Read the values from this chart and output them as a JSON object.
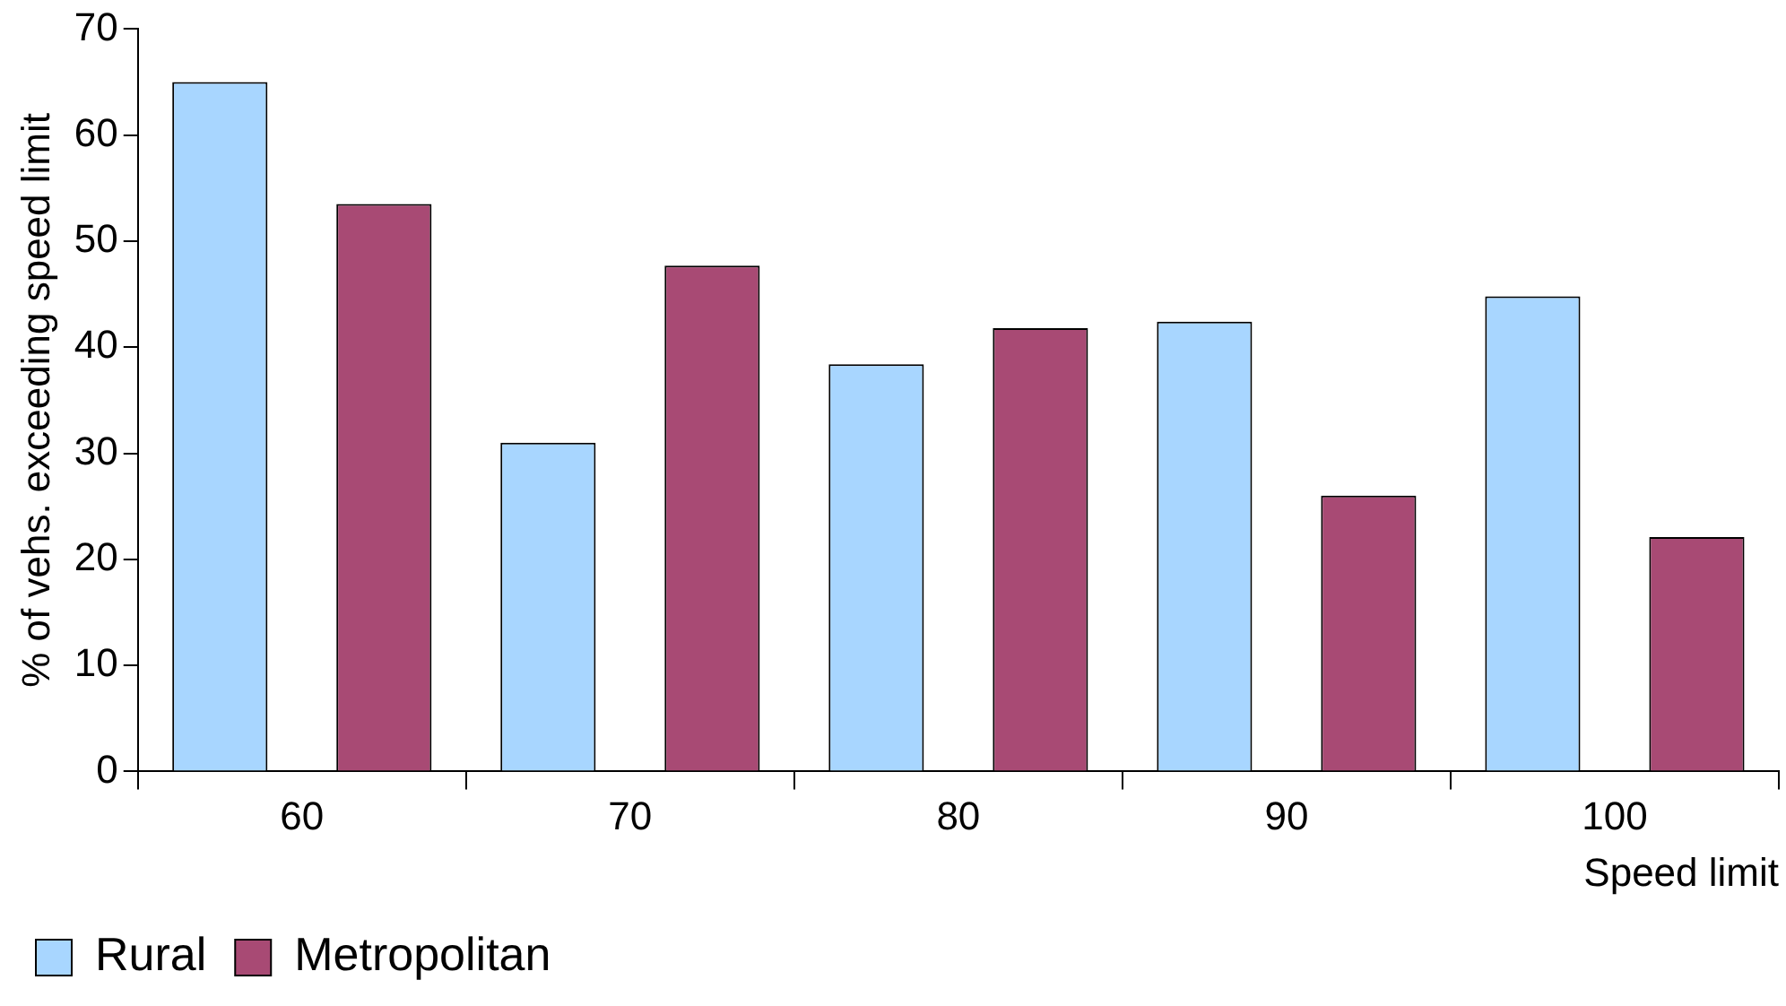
{
  "chart_data": {
    "type": "bar",
    "xlabel": "Speed limit",
    "ylabel": "% of vehs. exceeding speed limit",
    "categories": [
      "60",
      "70",
      "80",
      "90",
      "100"
    ],
    "series": [
      {
        "name": "Rural",
        "color": "#a8d6ff",
        "values": [
          65,
          31,
          38.4,
          42.4,
          44.8
        ]
      },
      {
        "name": "Metropolitan",
        "color": "#a84a74",
        "values": [
          53.5,
          47.7,
          41.8,
          26,
          22.1
        ]
      }
    ],
    "ylim": [
      0,
      70
    ],
    "yticks": [
      0,
      10,
      20,
      30,
      40,
      50,
      60,
      70
    ],
    "grid": false,
    "legend": "bottom left"
  }
}
